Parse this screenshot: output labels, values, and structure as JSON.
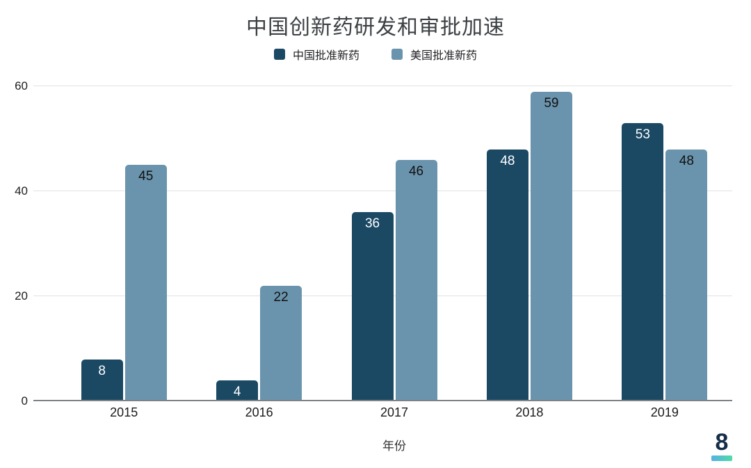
{
  "chart_data": {
    "type": "bar",
    "title": "中国创新药研发和审批加速",
    "xlabel": "年份",
    "categories": [
      "2015",
      "2016",
      "2017",
      "2018",
      "2019"
    ],
    "series": [
      {
        "name": "中国批准新药",
        "color": "#1b4964",
        "label_color": "#ffffff",
        "values": [
          8,
          4,
          36,
          48,
          53
        ]
      },
      {
        "name": "美国批准新药",
        "color": "#6a94ad",
        "label_color": "#111111",
        "values": [
          45,
          22,
          46,
          59,
          48
        ]
      }
    ],
    "yticks": [
      0,
      20,
      40,
      60
    ],
    "ylim": [
      0,
      60
    ],
    "grid": true,
    "legend_position": "top",
    "colors": {
      "gridline": "#e2e2e2",
      "axis_line": "#7d8287",
      "title_text": "#3c4043",
      "tick_text": "#1f1f1f"
    }
  },
  "branding": {
    "logo_glyph": "8"
  }
}
